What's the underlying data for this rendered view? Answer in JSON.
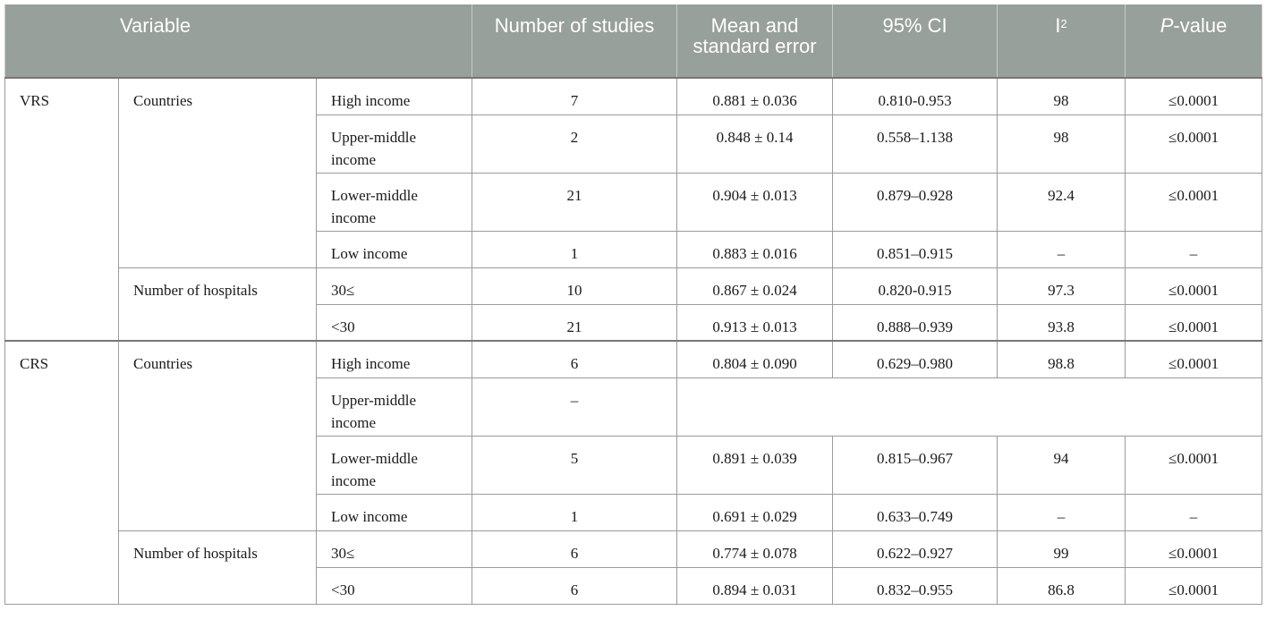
{
  "headers": {
    "variable": "Variable",
    "studies": "Number of studies",
    "mean": "Mean and standard error",
    "ci": "95% CI",
    "i_base": "I",
    "i_sup": "2",
    "p_italic": "P",
    "p_rest": "-value"
  },
  "rows": [
    {
      "group": "VRS",
      "cat": "Countries",
      "level": "High income",
      "n": "7",
      "mean": "0.881 ± 0.036",
      "ci": "0.810-0.953",
      "i2": "98",
      "p": "≤0.0001"
    },
    {
      "group": "",
      "cat": "",
      "level": "Upper-middle income",
      "n": "2",
      "mean": "0.848 ± 0.14",
      "ci": "0.558–1.138",
      "i2": "98",
      "p": "≤0.0001"
    },
    {
      "group": "",
      "cat": "",
      "level": "Lower-middle income",
      "n": "21",
      "mean": "0.904 ± 0.013",
      "ci": "0.879–0.928",
      "i2": "92.4",
      "p": "≤0.0001"
    },
    {
      "group": "",
      "cat": "",
      "level": "Low income",
      "n": "1",
      "mean": "0.883 ± 0.016",
      "ci": "0.851–0.915",
      "i2": "–",
      "p": "–"
    },
    {
      "group": "",
      "cat": "Number of hospitals",
      "level": "30≤",
      "n": "10",
      "mean": "0.867 ± 0.024",
      "ci": "0.820-0.915",
      "i2": "97.3",
      "p": "≤0.0001"
    },
    {
      "group": "",
      "cat": "",
      "level": "<30",
      "n": "21",
      "mean": "0.913 ± 0.013",
      "ci": "0.888–0.939",
      "i2": "93.8",
      "p": "≤0.0001"
    },
    {
      "group": "CRS",
      "cat": "Countries",
      "level": "High income",
      "n": "6",
      "mean": "0.804 ± 0.090",
      "ci": "0.629–0.980",
      "i2": "98.8",
      "p": "≤0.0001"
    },
    {
      "group": "",
      "cat": "",
      "level": "Upper-middle income",
      "n": "–",
      "mean": "",
      "ci": "",
      "i2": "",
      "p": ""
    },
    {
      "group": "",
      "cat": "",
      "level": "Lower-middle income",
      "n": "5",
      "mean": "0.891 ± 0.039",
      "ci": "0.815–0.967",
      "i2": "94",
      "p": "≤0.0001"
    },
    {
      "group": "",
      "cat": "",
      "level": "Low income",
      "n": "1",
      "mean": "0.691 ± 0.029",
      "ci": "0.633–0.749",
      "i2": "–",
      "p": "–"
    },
    {
      "group": "",
      "cat": "Number of hospitals",
      "level": "30≤",
      "n": "6",
      "mean": "0.774 ± 0.078",
      "ci": "0.622–0.927",
      "i2": "99",
      "p": "≤0.0001"
    },
    {
      "group": "",
      "cat": "",
      "level": "<30",
      "n": "6",
      "mean": "0.894 ± 0.031",
      "ci": "0.832–0.955",
      "i2": "86.8",
      "p": "≤0.0001"
    }
  ]
}
